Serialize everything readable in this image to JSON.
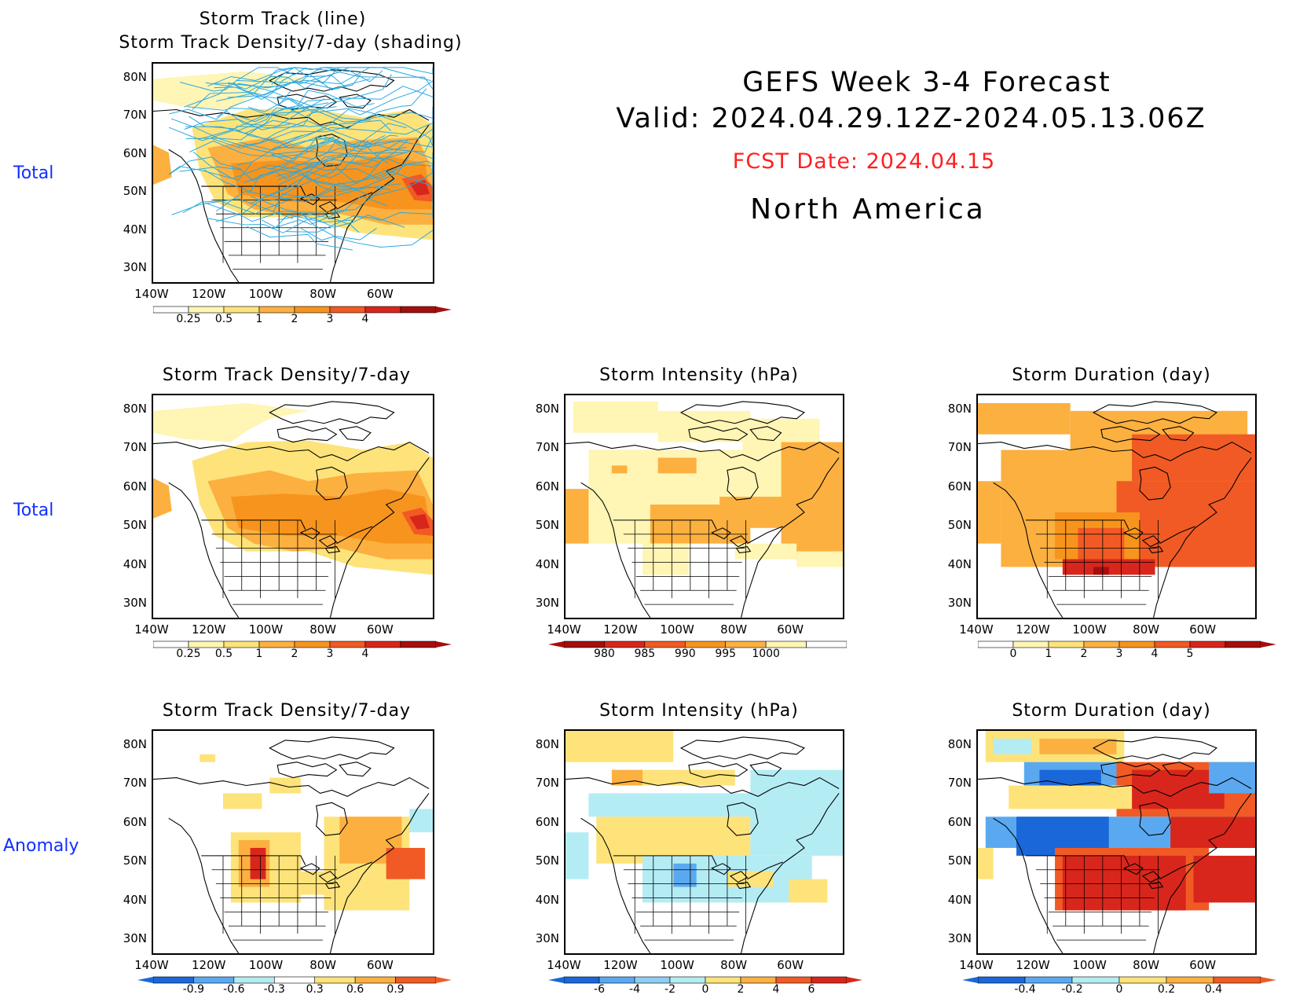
{
  "header": {
    "title_line1": "GEFS Week 3-4 Forecast",
    "title_line2": "Valid: 2024.04.29.12Z-2024.05.13.06Z",
    "fcst_date": "FCST Date: 2024.04.15",
    "region": "North America"
  },
  "row_labels": {
    "row1": "Total",
    "row2": "Total",
    "row3": "Anomaly"
  },
  "axes": {
    "lat_labels": [
      "80N",
      "70N",
      "60N",
      "50N",
      "40N",
      "30N"
    ],
    "lon_labels": [
      "140W",
      "120W",
      "100W",
      "80W",
      "60W"
    ]
  },
  "panels": {
    "p1": {
      "title_line1": "Storm Track (line)",
      "title_line2": "Storm Track Density/7-day (shading)",
      "colorbar": [
        "0.25",
        "0.5",
        "1",
        "2",
        "3",
        "4"
      ]
    },
    "p2": {
      "title": "Storm Track Density/7-day",
      "colorbar": [
        "0.25",
        "0.5",
        "1",
        "2",
        "3",
        "4"
      ]
    },
    "p3": {
      "title": "Storm Intensity (hPa)",
      "colorbar": [
        "980",
        "985",
        "990",
        "995",
        "1000"
      ]
    },
    "p4": {
      "title": "Storm Duration (day)",
      "colorbar": [
        "0",
        "1",
        "2",
        "3",
        "4",
        "5"
      ]
    },
    "p5": {
      "title": "Storm Track Density/7-day",
      "colorbar": [
        "-0.9",
        "-0.6",
        "-0.3",
        "0.3",
        "0.6",
        "0.9"
      ]
    },
    "p6": {
      "title": "Storm Intensity (hPa)",
      "colorbar": [
        "-6",
        "-4",
        "-2",
        "0",
        "2",
        "4",
        "6"
      ]
    },
    "p7": {
      "title": "Storm Duration (day)",
      "colorbar": [
        "-0.4",
        "-0.2",
        "0",
        "0.2",
        "0.4"
      ]
    }
  },
  "colors": {
    "yellow_light": "#fff5b4",
    "yellow": "#fde37a",
    "orange_light": "#fcb040",
    "orange": "#f7941d",
    "orange_dark": "#f15a24",
    "red": "#d8261c",
    "dark_red": "#a50e0e",
    "blue_light": "#b4ecf4",
    "blue": "#5aa9f0",
    "blue_dark": "#1a67d9",
    "track_line": "#29a8e0",
    "fcst_red": "#ff2020",
    "label_blue": "#1030ff"
  }
}
